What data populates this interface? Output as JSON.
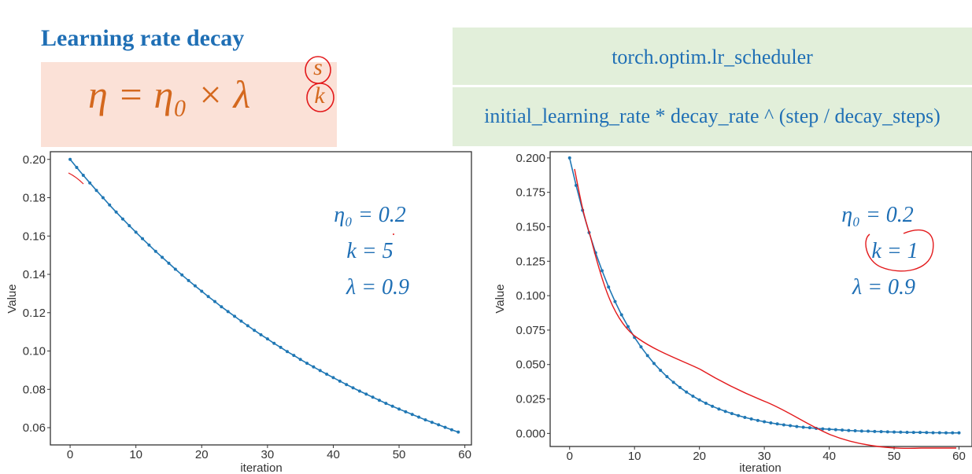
{
  "slide": {
    "title": "Learning rate decay",
    "formula": "η = η₀ × λ",
    "formula_exponent_top": "s",
    "formula_exponent_bottom": "k"
  },
  "api_box": {
    "module": "torch.optim.lr_scheduler",
    "expression": "initial_learning_rate * decay_rate ^ (step / decay_steps)"
  },
  "colors": {
    "title": "#1f6fb5",
    "formula": "#d4681e",
    "formula_bg": "#fbe1d7",
    "api_bg": "#e2efda",
    "series": "#1f77b4",
    "annotation_ink": "#e31a1c"
  },
  "chart_data": [
    {
      "type": "line",
      "xlabel": "iteration",
      "ylabel": "Value",
      "xlim": [
        -3,
        61
      ],
      "ylim": [
        0.051,
        0.204
      ],
      "xticks": [
        0,
        10,
        20,
        30,
        40,
        50,
        60
      ],
      "yticks": [
        0.06,
        0.08,
        0.1,
        0.12,
        0.14,
        0.16,
        0.18,
        0.2
      ],
      "ytick_labels": [
        "0.06",
        "0.08",
        "0.10",
        "0.12",
        "0.14",
        "0.16",
        "0.18",
        "0.20"
      ],
      "grid": false,
      "annotations": [
        "η₀ = 0.2",
        "k = 5",
        "λ = 0.9"
      ],
      "series": [
        {
          "x": [
            0,
            1,
            2,
            3,
            4,
            5,
            6,
            7,
            8,
            9,
            10,
            11,
            12,
            13,
            14,
            15,
            16,
            17,
            18,
            19,
            20,
            21,
            22,
            23,
            24,
            25,
            26,
            27,
            28,
            29,
            30,
            31,
            32,
            33,
            34,
            35,
            36,
            37,
            38,
            39,
            40,
            41,
            42,
            43,
            44,
            45,
            46,
            47,
            48,
            49,
            50,
            51,
            52,
            53,
            54,
            55,
            56,
            57,
            58,
            59
          ],
          "values": [
            0.2,
            0.1958,
            0.1917,
            0.1877,
            0.1838,
            0.18,
            0.1762,
            0.1725,
            0.1689,
            0.1654,
            0.162,
            0.1586,
            0.1553,
            0.152,
            0.1489,
            0.1458,
            0.1427,
            0.1397,
            0.1368,
            0.134,
            0.1312,
            0.1284,
            0.1258,
            0.1231,
            0.1206,
            0.1181,
            0.1156,
            0.1132,
            0.1108,
            0.1085,
            0.1063,
            0.104,
            0.1019,
            0.0997,
            0.0977,
            0.0956,
            0.0936,
            0.0917,
            0.0898,
            0.0879,
            0.0861,
            0.0843,
            0.0825,
            0.0808,
            0.0791,
            0.0775,
            0.0759,
            0.0743,
            0.0727,
            0.0712,
            0.0697,
            0.0683,
            0.0669,
            0.0655,
            0.0641,
            0.0628,
            0.0615,
            0.0602,
            0.0589,
            0.0577
          ]
        }
      ]
    },
    {
      "type": "line",
      "xlabel": "iteration",
      "ylabel": "Value",
      "xlim": [
        -3,
        62
      ],
      "ylim": [
        -0.0095,
        0.2045
      ],
      "xticks": [
        0,
        10,
        20,
        30,
        40,
        50,
        60
      ],
      "yticks": [
        0.0,
        0.025,
        0.05,
        0.075,
        0.1,
        0.125,
        0.15,
        0.175,
        0.2
      ],
      "ytick_labels": [
        "0.000",
        "0.025",
        "0.050",
        "0.075",
        "0.100",
        "0.125",
        "0.150",
        "0.175",
        "0.200"
      ],
      "grid": false,
      "annotations": [
        "η₀ = 0.2",
        "k = 1",
        "λ = 0.9"
      ],
      "series": [
        {
          "x": [
            0,
            1,
            2,
            3,
            4,
            5,
            6,
            7,
            8,
            9,
            10,
            11,
            12,
            13,
            14,
            15,
            16,
            17,
            18,
            19,
            20,
            21,
            22,
            23,
            24,
            25,
            26,
            27,
            28,
            29,
            30,
            31,
            32,
            33,
            34,
            35,
            36,
            37,
            38,
            39,
            40,
            41,
            42,
            43,
            44,
            45,
            46,
            47,
            48,
            49,
            50,
            51,
            52,
            53,
            54,
            55,
            56,
            57,
            58,
            59,
            60
          ],
          "values": [
            0.2,
            0.18,
            0.162,
            0.1458,
            0.1312,
            0.1181,
            0.1063,
            0.0957,
            0.0861,
            0.0775,
            0.0697,
            0.0628,
            0.0565,
            0.0508,
            0.0458,
            0.0412,
            0.0371,
            0.0334,
            0.03,
            0.027,
            0.0243,
            0.0219,
            0.0197,
            0.0177,
            0.016,
            0.0144,
            0.0129,
            0.0116,
            0.0105,
            0.0094,
            0.0085,
            0.0076,
            0.0069,
            0.0062,
            0.0056,
            0.005,
            0.0045,
            0.0041,
            0.0036,
            0.0033,
            0.003,
            0.0027,
            0.0024,
            0.0021,
            0.0019,
            0.0017,
            0.0016,
            0.0014,
            0.0013,
            0.0011,
            0.001,
            0.0009,
            0.0008,
            0.0007,
            0.0007,
            0.0006,
            0.0005,
            0.0005,
            0.0004,
            0.0004,
            0.0004
          ]
        }
      ]
    }
  ]
}
